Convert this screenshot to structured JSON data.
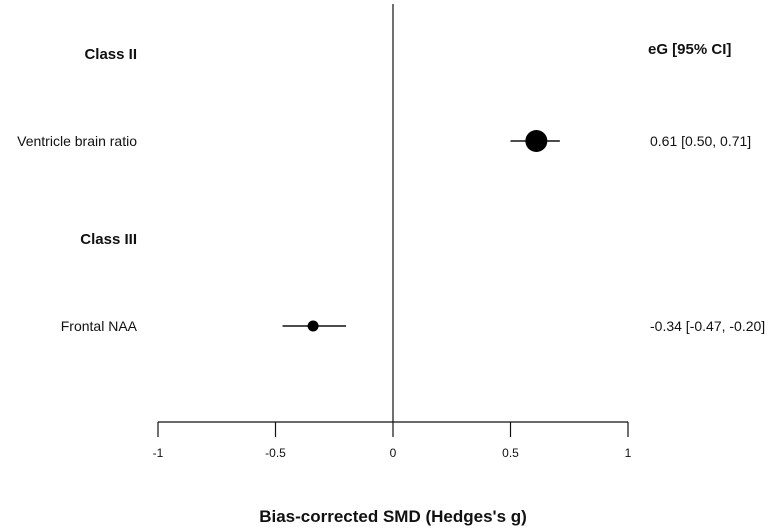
{
  "chart_data": {
    "type": "forest",
    "xlabel": "Bias-corrected SMD (Hedges's g)",
    "xlim": [
      -1,
      1
    ],
    "xticks": [
      -1,
      -0.5,
      0,
      0.5,
      1
    ],
    "xtick_labels": [
      "-1",
      "-0.5",
      "0",
      "0.5",
      "1"
    ],
    "reference_line": 0,
    "ci_column_header": "eG [95% CI]",
    "groups": [
      {
        "label": "Class II",
        "studies": [
          {
            "label": "Ventricle brain ratio",
            "estimate": 0.61,
            "ci_low": 0.5,
            "ci_high": 0.71,
            "ci_text": "0.61 [0.50, 0.71]",
            "marker": "large"
          }
        ]
      },
      {
        "label": "Class III",
        "studies": [
          {
            "label": "Frontal NAA",
            "estimate": -0.34,
            "ci_low": -0.47,
            "ci_high": -0.2,
            "ci_text": "-0.34 [-0.47, -0.20]",
            "marker": "small"
          }
        ]
      }
    ]
  }
}
